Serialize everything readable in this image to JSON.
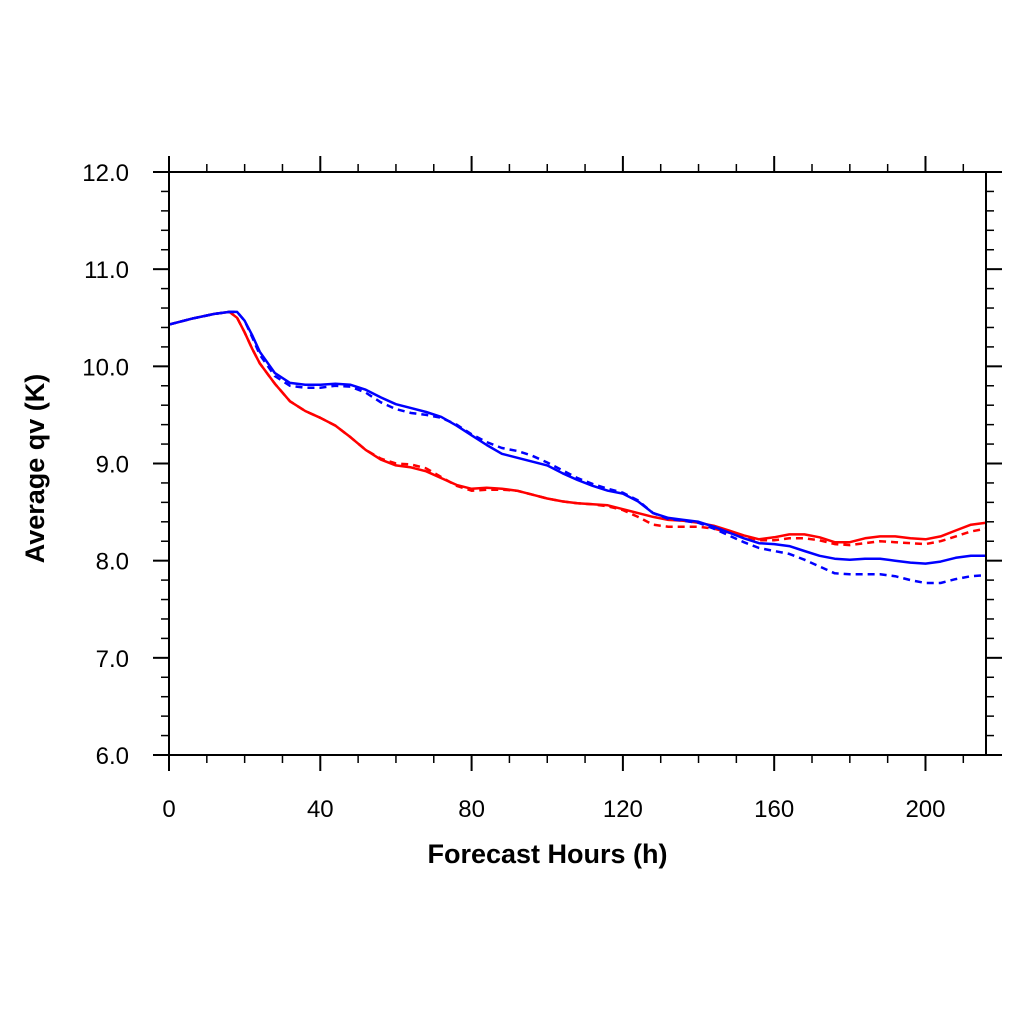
{
  "chart_data": {
    "type": "line",
    "title": "",
    "xlabel": "Forecast Hours (h)",
    "ylabel": "Average qv (K)",
    "xlim": [
      0,
      216
    ],
    "ylim": [
      6.0,
      12.0
    ],
    "x_ticks": [
      0,
      40,
      80,
      120,
      160,
      200
    ],
    "x_tick_labels": [
      "0",
      "40",
      "80",
      "120",
      "160",
      "200"
    ],
    "y_ticks": [
      6.0,
      7.0,
      8.0,
      9.0,
      10.0,
      11.0,
      12.0
    ],
    "y_tick_labels": [
      "6.0",
      "7.0",
      "8.0",
      "9.0",
      "10.0",
      "11.0",
      "12.0"
    ],
    "grid": false,
    "legend": "none",
    "series": [
      {
        "color": "#ff0000",
        "dash": "solid",
        "x": [
          0,
          6,
          12,
          16,
          18,
          20,
          22,
          24,
          28,
          32,
          36,
          40,
          44,
          48,
          52,
          56,
          60,
          64,
          68,
          72,
          76,
          80,
          84,
          88,
          92,
          96,
          100,
          104,
          108,
          112,
          116,
          120,
          124,
          128,
          132,
          136,
          140,
          144,
          148,
          152,
          156,
          160,
          164,
          168,
          172,
          176,
          180,
          184,
          188,
          192,
          196,
          200,
          204,
          208,
          212,
          216
        ],
        "y": [
          10.43,
          10.49,
          10.54,
          10.56,
          10.5,
          10.35,
          10.18,
          10.03,
          9.82,
          9.64,
          9.54,
          9.47,
          9.39,
          9.27,
          9.14,
          9.04,
          8.98,
          8.96,
          8.92,
          8.85,
          8.78,
          8.74,
          8.75,
          8.74,
          8.72,
          8.68,
          8.64,
          8.61,
          8.59,
          8.58,
          8.57,
          8.53,
          8.49,
          8.45,
          8.42,
          8.41,
          8.39,
          8.36,
          8.31,
          8.26,
          8.22,
          8.24,
          8.27,
          8.27,
          8.24,
          8.19,
          8.19,
          8.23,
          8.25,
          8.25,
          8.23,
          8.22,
          8.25,
          8.31,
          8.37,
          8.39
        ]
      },
      {
        "color": "#ff0000",
        "dash": "dashed",
        "x": [
          0,
          6,
          12,
          16,
          18,
          20,
          22,
          24,
          28,
          32,
          36,
          40,
          44,
          48,
          52,
          56,
          60,
          64,
          68,
          72,
          76,
          80,
          84,
          88,
          92,
          96,
          100,
          104,
          108,
          112,
          116,
          120,
          124,
          128,
          132,
          136,
          140,
          144,
          148,
          152,
          156,
          160,
          164,
          168,
          172,
          176,
          180,
          184,
          188,
          192,
          196,
          200,
          204,
          208,
          212,
          216
        ],
        "y": [
          10.43,
          10.49,
          10.54,
          10.56,
          10.5,
          10.35,
          10.18,
          10.03,
          9.82,
          9.64,
          9.54,
          9.47,
          9.39,
          9.27,
          9.14,
          9.05,
          9.0,
          8.99,
          8.95,
          8.86,
          8.77,
          8.72,
          8.73,
          8.73,
          8.72,
          8.68,
          8.64,
          8.61,
          8.59,
          8.58,
          8.56,
          8.52,
          8.45,
          8.37,
          8.35,
          8.35,
          8.35,
          8.33,
          8.29,
          8.25,
          8.21,
          8.21,
          8.23,
          8.23,
          8.21,
          8.17,
          8.16,
          8.18,
          8.2,
          8.19,
          8.18,
          8.17,
          8.2,
          8.25,
          8.3,
          8.33
        ]
      },
      {
        "color": "#0000ff",
        "dash": "solid",
        "x": [
          0,
          6,
          12,
          16,
          18,
          20,
          22,
          24,
          28,
          32,
          36,
          40,
          44,
          48,
          52,
          56,
          60,
          64,
          68,
          72,
          76,
          80,
          84,
          88,
          92,
          96,
          100,
          104,
          108,
          112,
          116,
          120,
          124,
          128,
          132,
          136,
          140,
          144,
          148,
          152,
          156,
          160,
          164,
          168,
          172,
          176,
          180,
          184,
          188,
          192,
          196,
          200,
          204,
          208,
          212,
          216
        ],
        "y": [
          10.43,
          10.49,
          10.54,
          10.56,
          10.56,
          10.47,
          10.32,
          10.15,
          9.93,
          9.83,
          9.81,
          9.81,
          9.82,
          9.81,
          9.76,
          9.68,
          9.61,
          9.57,
          9.53,
          9.48,
          9.39,
          9.29,
          9.19,
          9.1,
          9.06,
          9.02,
          8.98,
          8.9,
          8.83,
          8.77,
          8.72,
          8.69,
          8.61,
          8.49,
          8.44,
          8.42,
          8.4,
          8.35,
          8.29,
          8.23,
          8.18,
          8.17,
          8.15,
          8.1,
          8.05,
          8.02,
          8.01,
          8.02,
          8.02,
          8.0,
          7.98,
          7.97,
          7.99,
          8.03,
          8.05,
          8.05
        ]
      },
      {
        "color": "#0000ff",
        "dash": "dashed",
        "x": [
          0,
          6,
          12,
          16,
          18,
          20,
          22,
          24,
          28,
          32,
          36,
          40,
          44,
          48,
          52,
          56,
          60,
          64,
          68,
          72,
          76,
          80,
          84,
          88,
          92,
          96,
          100,
          104,
          108,
          112,
          116,
          120,
          124,
          128,
          132,
          136,
          140,
          144,
          148,
          152,
          156,
          160,
          164,
          168,
          172,
          176,
          180,
          184,
          188,
          192,
          196,
          200,
          204,
          208,
          212,
          216
        ],
        "y": [
          10.43,
          10.49,
          10.54,
          10.56,
          10.56,
          10.47,
          10.3,
          10.12,
          9.9,
          9.8,
          9.78,
          9.78,
          9.8,
          9.79,
          9.73,
          9.63,
          9.56,
          9.52,
          9.5,
          9.47,
          9.4,
          9.3,
          9.22,
          9.16,
          9.13,
          9.08,
          9.01,
          8.93,
          8.85,
          8.79,
          8.74,
          8.7,
          8.62,
          8.49,
          8.43,
          8.41,
          8.39,
          8.33,
          8.26,
          8.19,
          8.13,
          8.1,
          8.07,
          8.01,
          7.94,
          7.87,
          7.86,
          7.86,
          7.86,
          7.84,
          7.8,
          7.77,
          7.77,
          7.81,
          7.84,
          7.85
        ]
      }
    ]
  }
}
